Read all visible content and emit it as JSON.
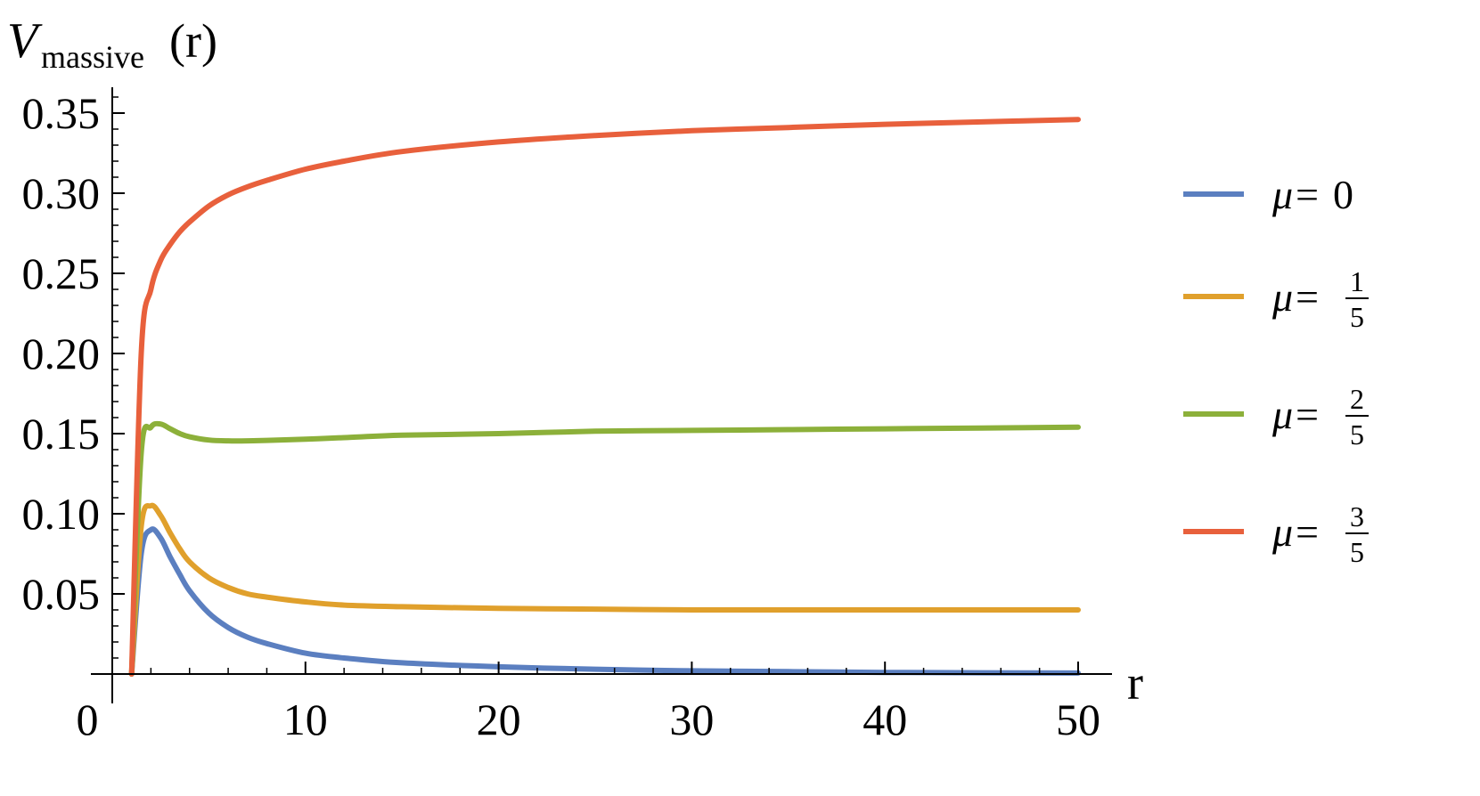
{
  "chart_data": {
    "type": "line",
    "ylabel": {
      "main": "V",
      "sub": "massive",
      "tail": "(r)"
    },
    "xlabel": "r",
    "xlim": [
      0,
      50
    ],
    "ylim": [
      0,
      0.365
    ],
    "x_ticks": [
      0,
      10,
      20,
      30,
      40,
      50
    ],
    "x_tick_labels": [
      "0",
      "10",
      "20",
      "30",
      "40",
      "50"
    ],
    "y_ticks": [
      0.05,
      0.1,
      0.15,
      0.2,
      0.25,
      0.3,
      0.35
    ],
    "y_tick_labels": [
      "0.05",
      "0.10",
      "0.15",
      "0.20",
      "0.25",
      "0.30",
      "0.35"
    ],
    "grid": false,
    "legend_position": "right",
    "x": [
      1.0,
      1.5,
      2.0,
      2.5,
      3.0,
      3.5,
      4.0,
      5.0,
      6.0,
      7.0,
      8.0,
      10.0,
      12.0,
      15.0,
      20.0,
      25.0,
      30.0,
      35.0,
      40.0,
      45.0,
      50.0
    ],
    "series": [
      {
        "name": "μ=0",
        "legend_prefix": "μ=",
        "legend_num": "0",
        "legend_den": "",
        "color": "#5b7fc0",
        "values": [
          0.0,
          0.075,
          0.09,
          0.085,
          0.073,
          0.062,
          0.052,
          0.038,
          0.029,
          0.023,
          0.019,
          0.013,
          0.01,
          0.007,
          0.0045,
          0.003,
          0.002,
          0.0015,
          0.001,
          0.0008,
          0.0006
        ]
      },
      {
        "name": "μ=1/5",
        "legend_prefix": "μ=",
        "legend_num": "1",
        "legend_den": "5",
        "color": "#e0a02c",
        "values": [
          0.0,
          0.092,
          0.105,
          0.099,
          0.088,
          0.078,
          0.07,
          0.06,
          0.054,
          0.05,
          0.048,
          0.045,
          0.043,
          0.042,
          0.041,
          0.0405,
          0.04,
          0.04,
          0.04,
          0.04,
          0.04
        ]
      },
      {
        "name": "μ=2/5",
        "legend_prefix": "μ=",
        "legend_num": "2",
        "legend_den": "5",
        "color": "#8cb03a",
        "values": [
          0.0,
          0.138,
          0.154,
          0.156,
          0.153,
          0.15,
          0.148,
          0.146,
          0.1455,
          0.1455,
          0.1458,
          0.1465,
          0.1475,
          0.149,
          0.15,
          0.1515,
          0.152,
          0.1525,
          0.153,
          0.1535,
          0.154
        ]
      },
      {
        "name": "μ=3/5",
        "legend_prefix": "μ=",
        "legend_num": "3",
        "legend_den": "5",
        "color": "#e8603c",
        "values": [
          0.0,
          0.2,
          0.24,
          0.258,
          0.268,
          0.276,
          0.282,
          0.292,
          0.299,
          0.304,
          0.308,
          0.315,
          0.32,
          0.326,
          0.332,
          0.336,
          0.339,
          0.341,
          0.343,
          0.3445,
          0.346
        ]
      }
    ]
  }
}
